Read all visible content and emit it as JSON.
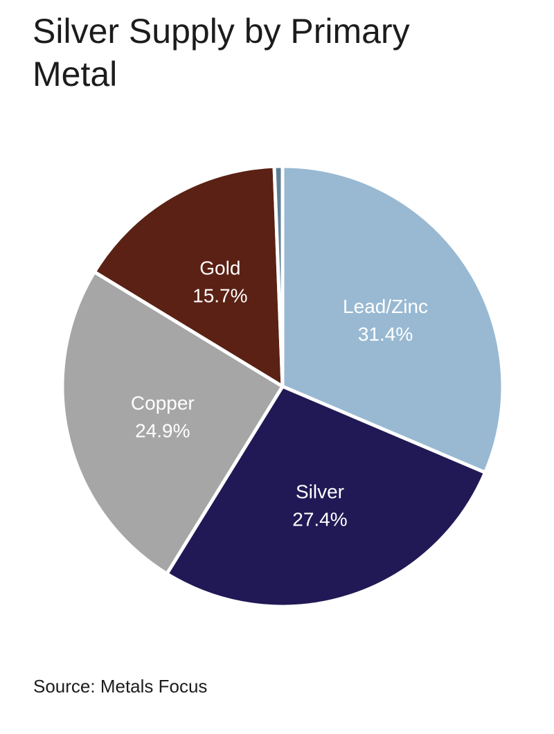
{
  "title": "Silver Supply by Primary Metal",
  "source": "Source: Metals Focus",
  "chart_data": {
    "type": "pie",
    "title": "Silver Supply by Primary Metal",
    "slices": [
      {
        "label": "Lead/Zinc",
        "value": 31.4,
        "value_label": "31.4%",
        "color": "#99b9d2"
      },
      {
        "label": "Silver",
        "value": 27.4,
        "value_label": "27.4%",
        "color": "#211955"
      },
      {
        "label": "Copper",
        "value": 24.9,
        "value_label": "24.9%",
        "color": "#a6a6a6"
      },
      {
        "label": "Gold",
        "value": 15.7,
        "value_label": "15.7%",
        "color": "#5a2114"
      },
      {
        "label": "",
        "value": 0.6,
        "value_label": "",
        "color": "#5f7e96"
      }
    ],
    "legend": "none"
  }
}
